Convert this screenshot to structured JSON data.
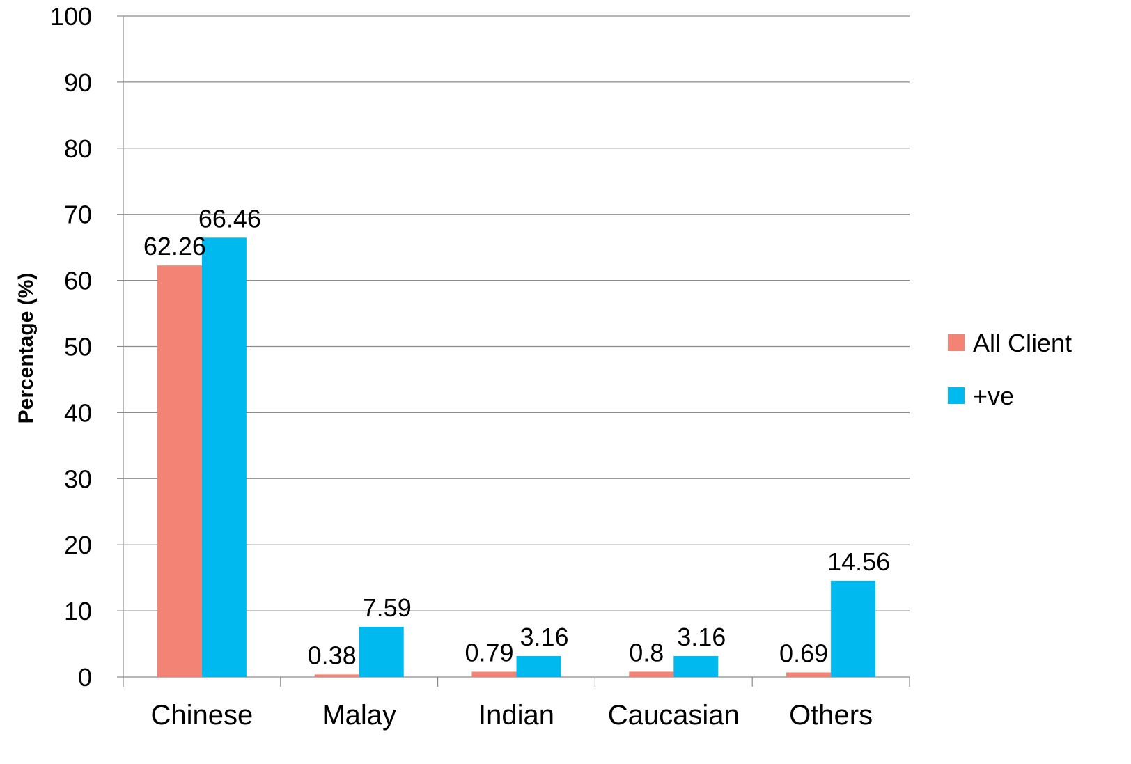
{
  "chart_data": {
    "type": "bar",
    "title": "",
    "xlabel": "",
    "ylabel": "Percentage (%)",
    "ylim": [
      0,
      100
    ],
    "yticks": [
      0,
      10,
      20,
      30,
      40,
      50,
      60,
      70,
      80,
      90,
      100
    ],
    "grid": true,
    "legend_position": "right",
    "categories": [
      "Chinese",
      "Malay",
      "Indian",
      "Caucasian",
      "Others"
    ],
    "series": [
      {
        "name": "All Client",
        "color": "#F28375",
        "values": [
          62.26,
          0.38,
          0.79,
          0.8,
          0.69
        ],
        "labels": [
          "62.26",
          "0.38",
          "0.79",
          "0.8",
          "0.69"
        ]
      },
      {
        "name": "+ve",
        "color": "#00B9EF",
        "values": [
          66.46,
          7.59,
          3.16,
          3.16,
          14.56
        ],
        "labels": [
          "66.46",
          "7.59",
          "3.16",
          "3.16",
          "14.56"
        ]
      }
    ]
  }
}
